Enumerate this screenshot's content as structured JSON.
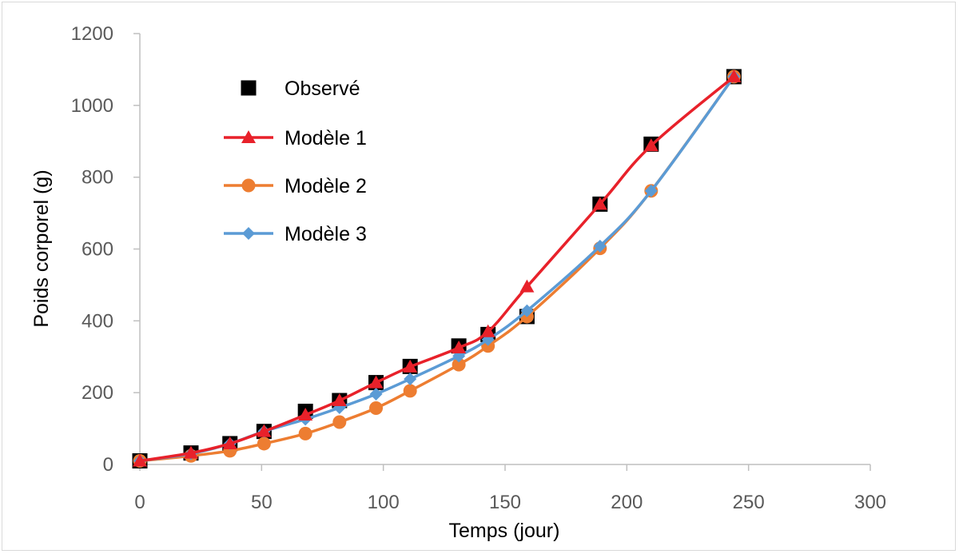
{
  "chart_data": {
    "type": "line",
    "title": "",
    "xlabel": "Temps (jour)",
    "ylabel": "Poids corporel (g)",
    "xlim": [
      0,
      300
    ],
    "ylim": [
      0,
      1200
    ],
    "xticks": [
      0,
      50,
      100,
      150,
      200,
      250,
      300
    ],
    "yticks": [
      0,
      200,
      400,
      600,
      800,
      1000,
      1200
    ],
    "grid": false,
    "legend_position": "top-left",
    "series": [
      {
        "name": "Observé",
        "marker": "square",
        "line": false,
        "color": "#000000",
        "points": [
          [
            0,
            10
          ],
          [
            21,
            32
          ],
          [
            37,
            58
          ],
          [
            51,
            92
          ],
          [
            68,
            148
          ],
          [
            82,
            178
          ],
          [
            97,
            228
          ],
          [
            111,
            273
          ],
          [
            131,
            330
          ],
          [
            143,
            362
          ],
          [
            159,
            412
          ],
          [
            189,
            725
          ],
          [
            210,
            892
          ],
          [
            244,
            1080
          ]
        ]
      },
      {
        "name": "Modèle 1",
        "marker": "triangle",
        "line": true,
        "color": "#E8212A",
        "points": [
          [
            0,
            10
          ],
          [
            21,
            32
          ],
          [
            37,
            58
          ],
          [
            51,
            92
          ],
          [
            68,
            138
          ],
          [
            82,
            178
          ],
          [
            97,
            228
          ],
          [
            111,
            272
          ],
          [
            131,
            325
          ],
          [
            143,
            370
          ],
          [
            159,
            495
          ],
          [
            189,
            725
          ],
          [
            210,
            888
          ],
          [
            244,
            1080
          ]
        ]
      },
      {
        "name": "Modèle 2",
        "marker": "circle",
        "line": true,
        "color": "#ED7D31",
        "points": [
          [
            0,
            10
          ],
          [
            21,
            24
          ],
          [
            37,
            38
          ],
          [
            51,
            58
          ],
          [
            68,
            86
          ],
          [
            82,
            118
          ],
          [
            97,
            157
          ],
          [
            111,
            205
          ],
          [
            131,
            278
          ],
          [
            143,
            330
          ],
          [
            159,
            412
          ],
          [
            189,
            602
          ],
          [
            210,
            762
          ],
          [
            244,
            1080
          ]
        ]
      },
      {
        "name": "Modèle 3",
        "marker": "diamond",
        "line": true,
        "color": "#5B9BD5",
        "points": [
          [
            0,
            10
          ],
          [
            21,
            30
          ],
          [
            37,
            58
          ],
          [
            51,
            92
          ],
          [
            68,
            126
          ],
          [
            82,
            158
          ],
          [
            97,
            196
          ],
          [
            111,
            238
          ],
          [
            131,
            302
          ],
          [
            143,
            348
          ],
          [
            159,
            428
          ],
          [
            189,
            608
          ],
          [
            210,
            762
          ],
          [
            244,
            1080
          ]
        ]
      }
    ]
  }
}
